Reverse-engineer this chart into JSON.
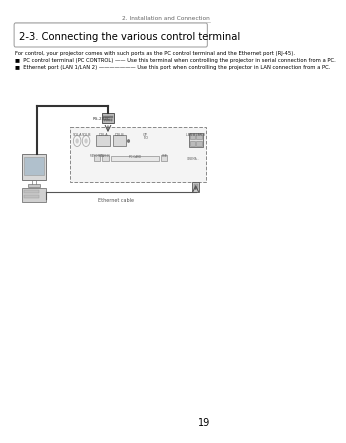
{
  "page_header": "2. Installation and Connection",
  "section_title": "2-3. Connecting the various control terminal",
  "intro_text": "For control, your projector comes with such ports as the PC control terminal and the Ethernet port (RJ-45).",
  "bullet1": "■  PC control terminal (PC CONTROL) —— Use this terminal when controlling the projector in serial connection from a PC.",
  "bullet2": "■  Ethernet port (LAN 1/LAN 2) ——————— Use this port when controlling the projector in LAN connection from a PC.",
  "label_rs232c": "RS-232C",
  "label_ethernet": "Ethernet cable",
  "page_number": "19",
  "bg_color": "#ffffff",
  "text_color": "#000000",
  "header_line_color": "#bbbbbb",
  "gray_light": "#e8e8e8",
  "gray_mid": "#cccccc",
  "gray_dark": "#999999"
}
